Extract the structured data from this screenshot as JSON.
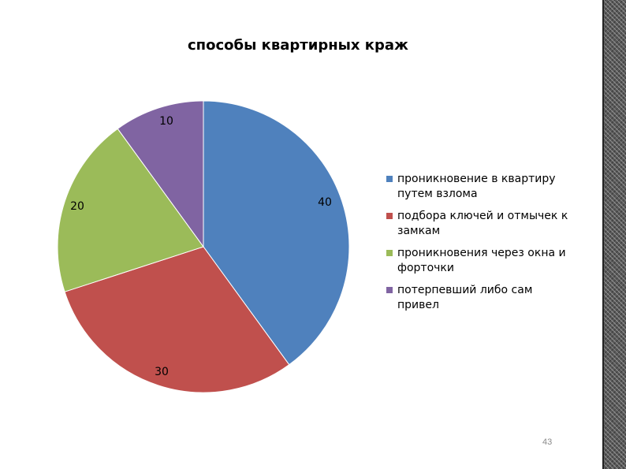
{
  "chart_data": {
    "type": "pie",
    "title": "способы квартирных краж",
    "categories": [
      "проникновение в квартиру путем взлома",
      "подбора ключей и отмычек к замкам",
      "проникновения через окна и форточки",
      "потерпевший либо сам привел"
    ],
    "values": [
      40,
      30,
      20,
      10
    ],
    "labels": [
      "40",
      "30",
      "20",
      "10"
    ],
    "colors": [
      "#4f81bd",
      "#c0504d",
      "#9bbb59",
      "#8064a2"
    ],
    "legend_position": "right"
  },
  "page": {
    "number": "43"
  },
  "icons": {
    "decor": "striped-side-bar"
  }
}
